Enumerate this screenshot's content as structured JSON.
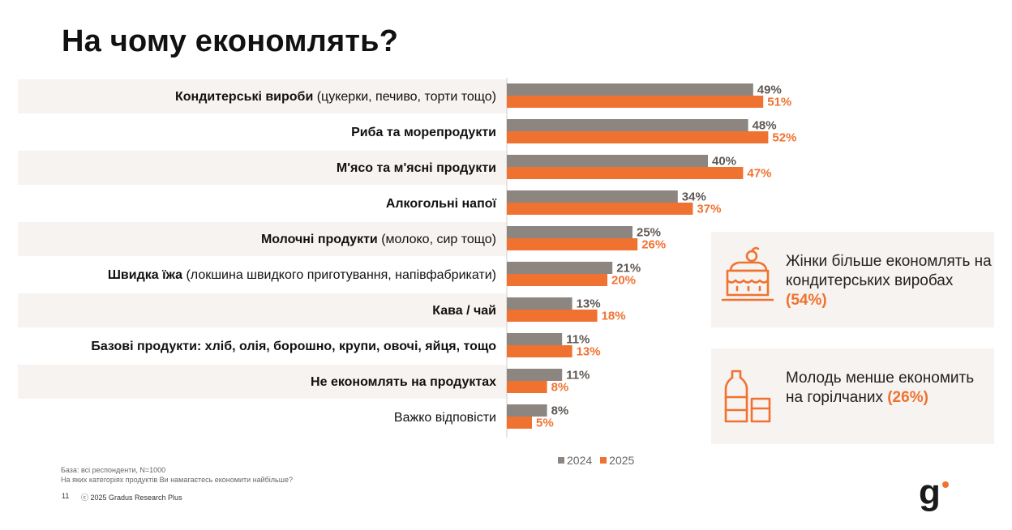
{
  "title": "На чому економлять?",
  "colors": {
    "y2024": "#8c8580",
    "y2025": "#f07230",
    "band": "#f7f3f0"
  },
  "categories": [
    {
      "bold": "Кондитерські вироби",
      "rest": " (цукерки, печиво, торти тощо)"
    },
    {
      "bold": "Риба та морепродукти",
      "rest": ""
    },
    {
      "bold": "М'ясо та м'ясні продукти",
      "rest": ""
    },
    {
      "bold": "Алкогольні напої",
      "rest": ""
    },
    {
      "bold": "Молочні продукти",
      "rest": " (молоко, сир тощо)"
    },
    {
      "bold": "Швидка їжа",
      "rest": " (локшина швидкого приготування, напівфабрикати)"
    },
    {
      "bold": "Кава / чай",
      "rest": ""
    },
    {
      "bold": "Базові продукти: хліб, олія, борошно, крупи, овочі, яйця, тощо",
      "rest": ""
    },
    {
      "bold": "Не економлять на продуктах",
      "rest": ""
    },
    {
      "bold": "",
      "rest": "Важко відповісти"
    }
  ],
  "chart_data": {
    "type": "bar",
    "orientation": "horizontal",
    "title": "На чому економлять?",
    "categories": [
      "Кондитерські вироби (цукерки, печиво, торти тощо)",
      "Риба та морепродукти",
      "М'ясо та м'ясні продукти",
      "Алкогольні напої",
      "Молочні продукти (молоко, сир тощо)",
      "Швидка їжа (локшина швидкого приготування, напівфабрикати)",
      "Кава / чай",
      "Базові продукти: хліб, олія, борошно, крупи, овочі, яйця, тощо",
      "Не економлять на продуктах",
      "Важко відповісти"
    ],
    "series": [
      {
        "name": "2024",
        "values": [
          49,
          48,
          40,
          34,
          25,
          21,
          13,
          11,
          11,
          8
        ]
      },
      {
        "name": "2025",
        "values": [
          51,
          52,
          47,
          37,
          26,
          20,
          18,
          13,
          8,
          5
        ]
      }
    ],
    "value_suffix": "%",
    "xlim": [
      0,
      100
    ],
    "legend_position": "bottom"
  },
  "legend": {
    "y2024": "2024",
    "y2025": "2025"
  },
  "cards": [
    {
      "icon": "cake-icon",
      "pre": "Жінки більше економлять на кондитерських виробах ",
      "highlight": "(54%)"
    },
    {
      "icon": "bottle-glass-icon",
      "pre": "Молодь менше економить на горілчаних ",
      "highlight": "(26%)"
    }
  ],
  "footnote": {
    "base": "База: всі респонденти, N=1000",
    "question": "На яких категоріях продуктів Ви намагаєтесь економити найбільше?"
  },
  "page_number": "11",
  "copyright": "ⓒ 2025 Gradus Research Plus",
  "logo_text": "g"
}
